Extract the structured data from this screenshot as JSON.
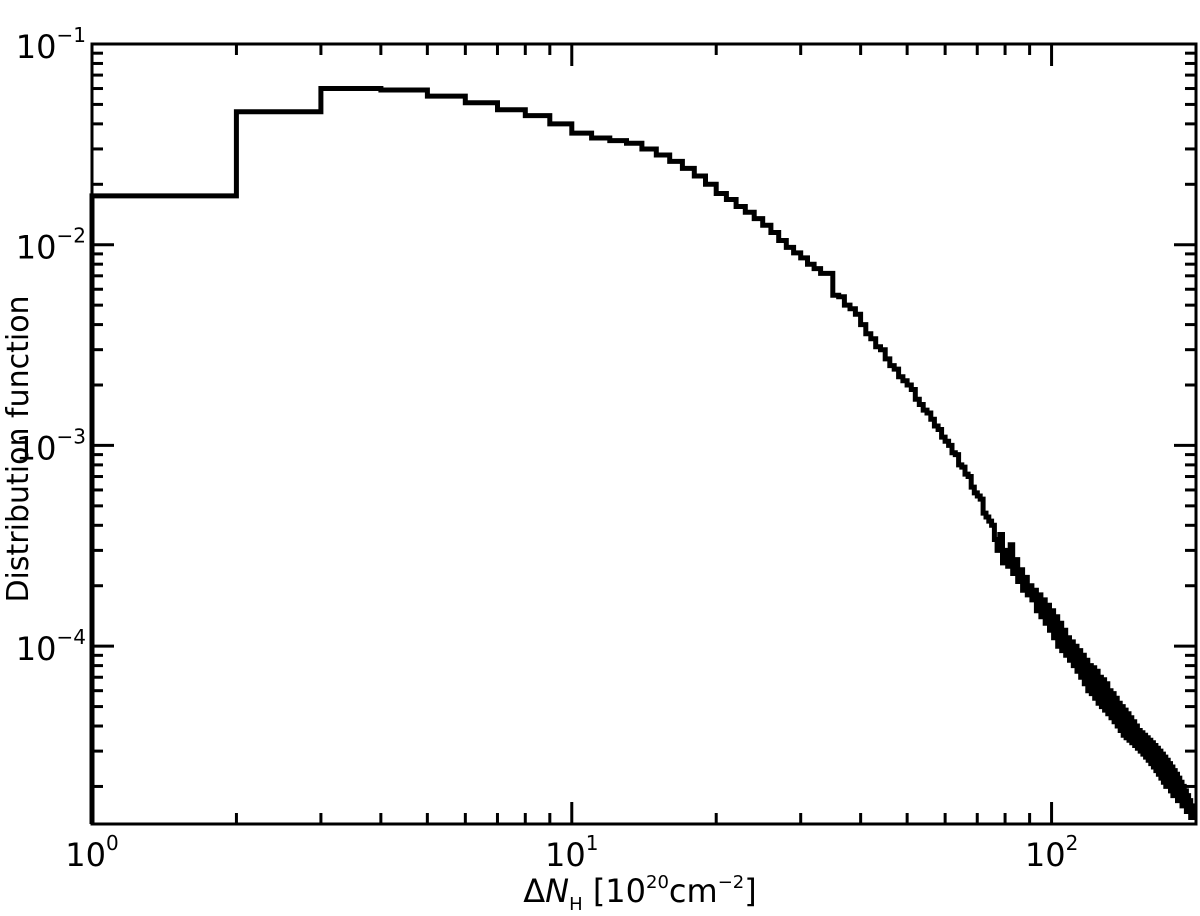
{
  "chart_data": {
    "type": "line",
    "style": "histogram-step",
    "title": "",
    "xlabel": {
      "prefix": "Δ",
      "symbol": "N",
      "subscript": "H",
      "unit_open": " [10",
      "unit_exp": "20",
      "unit_mid": "cm",
      "unit_exp2": "−2",
      "unit_close": "]"
    },
    "ylabel": "Distribution function",
    "xscale": "log",
    "yscale": "log",
    "xlim": [
      1,
      200
    ],
    "ylim": [
      1.3e-05,
      0.1
    ],
    "grid": false,
    "line_color": "#000000",
    "x_major_ticks": [
      {
        "value": 1,
        "base": "10",
        "exp": "0"
      },
      {
        "value": 10,
        "base": "10",
        "exp": "1"
      },
      {
        "value": 100,
        "base": "10",
        "exp": "2"
      }
    ],
    "y_major_ticks": [
      {
        "value": 0.1,
        "base": "10",
        "exp": "−1"
      },
      {
        "value": 0.01,
        "base": "10",
        "exp": "−2"
      },
      {
        "value": 0.001,
        "base": "10",
        "exp": "−3"
      },
      {
        "value": 0.0001,
        "base": "10",
        "exp": "−4"
      }
    ],
    "series": [
      {
        "bin_width": 1,
        "bins_start": 1,
        "values": [
          0.0175,
          0.046,
          0.06,
          0.059,
          0.055,
          0.051,
          0.047,
          0.044,
          0.04,
          0.036,
          0.034,
          0.033,
          0.032,
          0.03,
          0.028,
          0.026,
          0.024,
          0.022,
          0.02,
          0.018,
          0.0168,
          0.0155,
          0.0145,
          0.0135,
          0.0125,
          0.0115,
          0.0105,
          0.0097,
          0.0091,
          0.0086,
          0.008,
          0.0076,
          0.0072,
          0.0072,
          0.0056,
          0.0055,
          0.005,
          0.0048,
          0.0045,
          0.004,
          0.0036,
          0.0034,
          0.0031,
          0.003,
          0.0027,
          0.0025,
          0.0024,
          0.0022,
          0.0021,
          0.002,
          0.0019,
          0.0017,
          0.0016,
          0.0015,
          0.00145,
          0.00135,
          0.00125,
          0.0012,
          0.0011,
          0.00105,
          0.001,
          0.00092,
          0.0009,
          0.0008,
          0.00078,
          0.00072,
          0.0007,
          0.00062,
          0.00058,
          0.00056,
          0.00054,
          0.00046,
          0.00044,
          0.00042,
          0.0004,
          0.00034,
          0.0003,
          0.00036,
          0.00026,
          0.0003,
          0.00025,
          0.00032,
          0.00023,
          0.00027,
          0.00021,
          0.00024,
          0.00019,
          0.00022,
          0.00018,
          0.0002,
          0.00017,
          0.00019,
          0.00015,
          0.00018,
          0.00014,
          0.00017,
          0.00013,
          0.00016,
          0.00012,
          0.00015,
          0.00011,
          0.00014,
          0.0001,
          0.00013,
          9.5e-05,
          0.00012,
          9e-05,
          0.00011,
          8.5e-05,
          0.000105,
          8e-05,
          0.0001,
          7.5e-05,
          9.5e-05,
          7e-05,
          9e-05,
          6.5e-05,
          8.5e-05,
          6e-05,
          8e-05,
          5.8e-05,
          7.8e-05,
          5.5e-05,
          7.5e-05,
          5.2e-05,
          7e-05,
          5e-05,
          6.8e-05,
          4.8e-05,
          6.5e-05,
          4.6e-05,
          6e-05,
          4.4e-05,
          5.8e-05,
          4.2e-05,
          5.5e-05,
          4e-05,
          5.2e-05,
          3.8e-05,
          5e-05,
          3.6e-05,
          4.8e-05,
          3.5e-05,
          4.6e-05,
          3.4e-05,
          4.4e-05,
          3.3e-05,
          4.2e-05,
          3.2e-05,
          4e-05,
          3.1e-05,
          3.8e-05,
          3e-05,
          3.7e-05,
          2.9e-05,
          3.6e-05,
          2.8e-05,
          3.5e-05,
          2.7e-05,
          3.4e-05,
          2.6e-05,
          3.3e-05,
          2.5e-05,
          3.2e-05,
          2.4e-05,
          3.1e-05,
          2.3e-05,
          3e-05,
          2.2e-05,
          2.9e-05,
          2.1e-05,
          2.8e-05,
          2e-05,
          2.7e-05,
          2e-05,
          2.6e-05,
          1.9e-05,
          2.5e-05,
          1.8e-05,
          2.4e-05,
          1.8e-05,
          2.3e-05,
          1.7e-05,
          2.2e-05,
          1.7e-05,
          2.1e-05,
          1.6e-05,
          2e-05,
          1.6e-05,
          1.9e-05,
          1.5e-05,
          1.8e-05,
          1.5e-05,
          1.7e-05,
          1.4e-05,
          1.6e-05,
          1.4e-05,
          1.5e-05,
          1.4e-05
        ]
      }
    ]
  }
}
